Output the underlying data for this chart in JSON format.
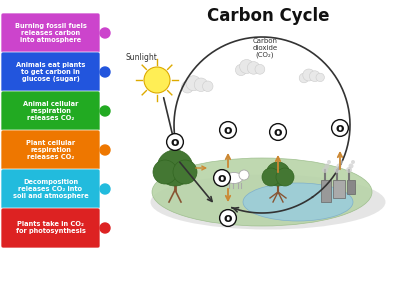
{
  "title": "Carbon Cycle",
  "bg_color": "#ffffff",
  "legend_items": [
    {
      "text": "Burning fossil fuels\nreleases carbon\ninto atmosphere",
      "color": "#cc44cc"
    },
    {
      "text": "Animals eat plants\nto get carbon in\nglucose (sugar)",
      "color": "#2255dd"
    },
    {
      "text": "Animal cellular\nrespiration\nreleases CO₂",
      "color": "#22aa22"
    },
    {
      "text": "Plant cellular\nrespiration\nreleases CO₂",
      "color": "#ee7700"
    },
    {
      "text": "Decomposition\nreleases CO₂ into\nsoil and atmosphere",
      "color": "#22bbdd"
    },
    {
      "text": "Plants take in CO₂\nfor photosynthesis",
      "color": "#dd2222"
    }
  ],
  "arrow_color": "#cc8833",
  "cycle_arrow_color": "#333333",
  "ground_color": "#b8d4a8",
  "ground_edge": "#99bb88",
  "water_color": "#99ccdd",
  "water_edge": "#77aacc",
  "sunlight_color": "#ffee55",
  "sunlight_edge": "#ddaa00",
  "cloud_color": "#e8e8e8",
  "cloud_edge": "#cccccc",
  "sunlight_label": "Sunlight",
  "co2_label": "Carbon\ndioxide\n(CO₂)",
  "tree_trunk": "#885533",
  "tree_top": "#447733",
  "tree_top_edge": "#336622",
  "shadow_color": "#cccccc"
}
